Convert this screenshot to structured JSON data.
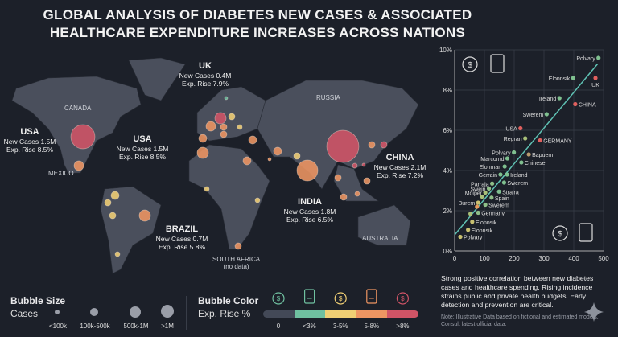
{
  "title_line1": "GLOBAL ANALYSIS OF DIABETES NEW CASES & ASSOCIATED",
  "title_line2": "HEALTHCARE EXPENDITURE INCREASES ACROSS NATIONS",
  "map": {
    "regions": [
      "CANADA",
      "RUSSIA",
      "MEXICO",
      "AUSTRALIA",
      "SOUTH AFRICA",
      "(no data)"
    ],
    "callouts": [
      {
        "name": "USA",
        "cases": "New Cases 1.5M",
        "rise": "Exp. Rise 8.5%"
      },
      {
        "name": "USA",
        "cases": "New Cases 1.5M",
        "rise": "Exp. Rise 8.5%"
      },
      {
        "name": "UK",
        "cases": "New Cases 0.4M",
        "rise": "Exp. Rise 7.9%"
      },
      {
        "name": "CHINA",
        "cases": "New Cases 2.1M",
        "rise": "Exp. Rise 7.2%"
      },
      {
        "name": "INDIA",
        "cases": "New Cases 1.8M",
        "rise": "Exp. Rise 6.5%"
      },
      {
        "name": "BRAZIL",
        "cases": "New Cases 0.7M",
        "rise": "Exp. Rise 5.8%"
      }
    ]
  },
  "legend": {
    "size_title": "Bubble Size",
    "size_sub": "Cases",
    "size_labels": [
      "<100k",
      "100k-500k",
      "500k-1M",
      ">1M"
    ],
    "color_title": "Bubble Color",
    "color_sub": "Exp. Rise %",
    "color_labels": [
      "0",
      "<3%",
      "3-5%",
      "5-8%",
      ">8%"
    ],
    "colors": [
      "#434957",
      "#6fc0a0",
      "#f0cf74",
      "#ee9562",
      "#d05466"
    ]
  },
  "note": "Strong positive correlation between new diabetes cases and healthcare spending. Rising incidence strains public and private health budgets. Early detection and prevention are critical.",
  "fine_print": "Note: Illustrative Data based on fictional and estimated models. Consult latest official data.",
  "chart_data": {
    "type": "scatter",
    "title": "",
    "xlabel": "",
    "ylabel": "",
    "xlim": [
      0,
      500
    ],
    "ylim": [
      0,
      10
    ],
    "x_ticks": [
      "0",
      "100",
      "200",
      "300",
      "400",
      "500"
    ],
    "y_ticks": [
      "0%",
      "2%",
      "4%",
      "6%",
      "8%",
      "10%"
    ],
    "grid": true,
    "trendline": {
      "from": [
        0,
        0.8
      ],
      "to": [
        480,
        9.3
      ],
      "color": "#5fc2b4"
    },
    "points": [
      {
        "label": "Polvary",
        "x": 483,
        "y": 9.6,
        "color": "#7fbf8f"
      },
      {
        "label": "Elonnsik",
        "x": 398,
        "y": 8.6,
        "color": "#7fbf8f"
      },
      {
        "label": "UK",
        "x": 473,
        "y": 8.6,
        "color": "#e0605e"
      },
      {
        "label": "Ireland",
        "x": 352,
        "y": 7.6,
        "color": "#7fbf8f"
      },
      {
        "label": "CHINA",
        "x": 405,
        "y": 7.3,
        "color": "#e0605e"
      },
      {
        "label": "Swerem",
        "x": 309,
        "y": 6.8,
        "color": "#7fbf8f"
      },
      {
        "label": "USA",
        "x": 221,
        "y": 6.1,
        "color": "#e0605e"
      },
      {
        "label": "Regran",
        "x": 237,
        "y": 5.6,
        "color": "#a8bf78"
      },
      {
        "label": "GERMANY",
        "x": 287,
        "y": 5.5,
        "color": "#e0605e"
      },
      {
        "label": "Polvary",
        "x": 199,
        "y": 4.9,
        "color": "#7fbf8f"
      },
      {
        "label": "Bapuem",
        "x": 249,
        "y": 4.8,
        "color": "#b89a6e"
      },
      {
        "label": "Marcomd",
        "x": 177,
        "y": 4.6,
        "color": "#7fbf8f"
      },
      {
        "label": "Chinese",
        "x": 224,
        "y": 4.4,
        "color": "#7fbf8f"
      },
      {
        "label": "Elonman",
        "x": 168,
        "y": 4.2,
        "color": "#7fbf8f"
      },
      {
        "label": "Gerrain",
        "x": 154,
        "y": 3.8,
        "color": "#7fbf8f"
      },
      {
        "label": "Ireland",
        "x": 176,
        "y": 3.8,
        "color": "#7fbf8f"
      },
      {
        "label": "Parraja",
        "x": 126,
        "y": 3.35,
        "color": "#8fbf88"
      },
      {
        "label": "Swerem",
        "x": 166,
        "y": 3.4,
        "color": "#7fbf8f"
      },
      {
        "label": "Swein",
        "x": 115,
        "y": 3.1,
        "color": "#8fbf88"
      },
      {
        "label": "Straira",
        "x": 149,
        "y": 2.95,
        "color": "#7fbf8f"
      },
      {
        "label": "Moiper",
        "x": 103,
        "y": 2.9,
        "color": "#a8bf78"
      },
      {
        "label": "",
        "x": 92,
        "y": 2.7,
        "color": "#a8bf78"
      },
      {
        "label": "Spain",
        "x": 124,
        "y": 2.65,
        "color": "#8fbf88"
      },
      {
        "label": "Burem",
        "x": 79,
        "y": 2.4,
        "color": "#c8c070"
      },
      {
        "label": "Swerem",
        "x": 103,
        "y": 2.3,
        "color": "#8fbf88"
      },
      {
        "label": "",
        "x": 75,
        "y": 2.2,
        "color": "#e89a5a"
      },
      {
        "label": "Germany",
        "x": 79,
        "y": 1.9,
        "color": "#8fbf88"
      },
      {
        "label": "",
        "x": 53,
        "y": 1.85,
        "color": "#a8bf78"
      },
      {
        "label": "Elonnsik",
        "x": 59,
        "y": 1.45,
        "color": "#c8c070"
      },
      {
        "label": "Elonnsik",
        "x": 45,
        "y": 1.05,
        "color": "#c8c070"
      },
      {
        "label": "Polvary",
        "x": 19,
        "y": 0.7,
        "color": "#c8c070"
      }
    ]
  }
}
